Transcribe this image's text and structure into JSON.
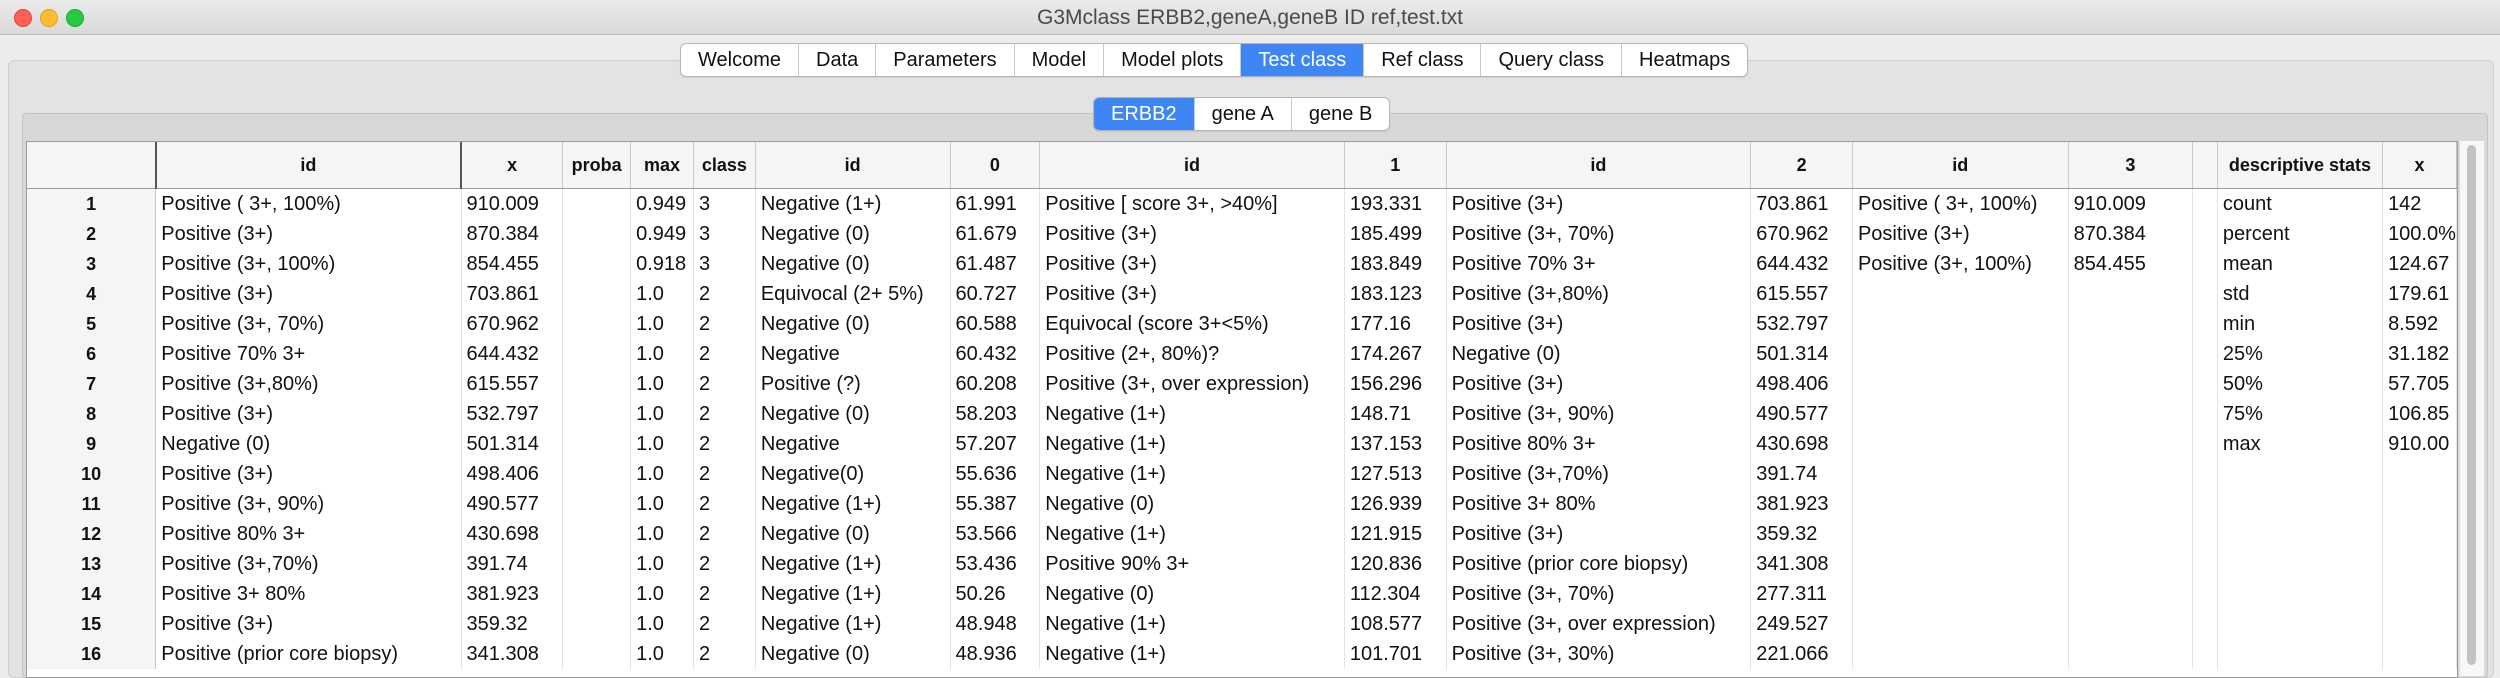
{
  "window": {
    "title": "G3Mclass ERBB2,geneA,geneB ID ref,test.txt"
  },
  "tabs": [
    {
      "label": "Welcome",
      "active": false
    },
    {
      "label": "Data",
      "active": false
    },
    {
      "label": "Parameters",
      "active": false
    },
    {
      "label": "Model",
      "active": false
    },
    {
      "label": "Model plots",
      "active": false
    },
    {
      "label": "Test class",
      "active": true
    },
    {
      "label": "Ref class",
      "active": false
    },
    {
      "label": "Query class",
      "active": false
    },
    {
      "label": "Heatmaps",
      "active": false
    }
  ],
  "subtabs": [
    {
      "label": "ERBB2",
      "active": true
    },
    {
      "label": "gene A",
      "active": false
    },
    {
      "label": "gene B",
      "active": false
    }
  ],
  "table": {
    "columns": [
      "",
      "id",
      "x",
      "proba",
      "max",
      "class",
      "id",
      "0",
      "id",
      "1",
      "id",
      "2",
      "id",
      "3",
      "",
      "descriptive stats",
      "x"
    ],
    "rows": [
      [
        "1",
        "Positive ( 3+, 100%)",
        "910.009",
        "",
        "0.949",
        "3",
        "Negative (1+)",
        "61.991",
        "Positive [ score 3+, >40%]",
        "193.331",
        "Positive (3+)",
        "703.861",
        "Positive ( 3+, 100%)",
        "910.009",
        "",
        "count",
        "142"
      ],
      [
        "2",
        "Positive (3+)",
        "870.384",
        "",
        "0.949",
        "3",
        "Negative (0)",
        "61.679",
        "Positive (3+)",
        "185.499",
        "Positive (3+, 70%)",
        "670.962",
        "Positive (3+)",
        "870.384",
        "",
        "percent",
        "100.0%"
      ],
      [
        "3",
        "Positive (3+, 100%)",
        "854.455",
        "",
        "0.918",
        "3",
        "Negative (0)",
        "61.487",
        "Positive (3+)",
        "183.849",
        "Positive 70% 3+",
        "644.432",
        "Positive (3+, 100%)",
        "854.455",
        "",
        "mean",
        "124.67"
      ],
      [
        "4",
        "Positive (3+)",
        "703.861",
        "",
        "1.0",
        "2",
        "Equivocal (2+ 5%)",
        "60.727",
        "Positive (3+)",
        "183.123",
        "Positive (3+,80%)",
        "615.557",
        "",
        "",
        "",
        "std",
        "179.61"
      ],
      [
        "5",
        "Positive (3+, 70%)",
        "670.962",
        "",
        "1.0",
        "2",
        "Negative (0)",
        "60.588",
        "Equivocal (score 3+<5%)",
        "177.16",
        "Positive (3+)",
        "532.797",
        "",
        "",
        "",
        "min",
        "8.592"
      ],
      [
        "6",
        "Positive 70% 3+",
        "644.432",
        "",
        "1.0",
        "2",
        "Negative",
        "60.432",
        "Positive  (2+, 80%)?",
        "174.267",
        "Negative (0)",
        "501.314",
        "",
        "",
        "",
        "25%",
        "31.182"
      ],
      [
        "7",
        "Positive (3+,80%)",
        "615.557",
        "",
        "1.0",
        "2",
        "Positive (?)",
        "60.208",
        "Positive (3+, over expression)",
        "156.296",
        "Positive (3+)",
        "498.406",
        "",
        "",
        "",
        "50%",
        "57.705"
      ],
      [
        "8",
        "Positive (3+)",
        "532.797",
        "",
        "1.0",
        "2",
        "Negative (0)",
        "58.203",
        "Negative (1+)",
        "148.71",
        "Positive (3+, 90%)",
        "490.577",
        "",
        "",
        "",
        "75%",
        "106.85"
      ],
      [
        "9",
        "Negative (0)",
        "501.314",
        "",
        "1.0",
        "2",
        "Negative",
        "57.207",
        "Negative (1+)",
        "137.153",
        "Positive 80% 3+",
        "430.698",
        "",
        "",
        "",
        "max",
        "910.00"
      ],
      [
        "10",
        "Positive (3+)",
        "498.406",
        "",
        "1.0",
        "2",
        "Negative(0)",
        "55.636",
        "Negative (1+)",
        "127.513",
        "Positive (3+,70%)",
        "391.74",
        "",
        "",
        "",
        "",
        ""
      ],
      [
        "11",
        "Positive (3+, 90%)",
        "490.577",
        "",
        "1.0",
        "2",
        "Negative (1+)",
        "55.387",
        "Negative (0)",
        "126.939",
        "Positive 3+ 80%",
        "381.923",
        "",
        "",
        "",
        "",
        ""
      ],
      [
        "12",
        "Positive 80% 3+",
        "430.698",
        "",
        "1.0",
        "2",
        "Negative (0)",
        "53.566",
        "Negative (1+)",
        "121.915",
        "Positive (3+)",
        "359.32",
        "",
        "",
        "",
        "",
        ""
      ],
      [
        "13",
        "Positive (3+,70%)",
        "391.74",
        "",
        "1.0",
        "2",
        "Negative (1+)",
        "53.436",
        "Positive 90% 3+",
        "120.836",
        "Positive (prior core biopsy)",
        "341.308",
        "",
        "",
        "",
        "",
        ""
      ],
      [
        "14",
        "Positive 3+ 80%",
        "381.923",
        "",
        "1.0",
        "2",
        "Negative (1+)",
        "50.26",
        "Negative (0)",
        "112.304",
        "Positive (3+, 70%)",
        "277.311",
        "",
        "",
        "",
        "",
        ""
      ],
      [
        "15",
        "Positive (3+)",
        "359.32",
        "",
        "1.0",
        "2",
        "Negative (1+)",
        "48.948",
        "Negative (1+)",
        "108.577",
        "Positive (3+, over expression)",
        "249.527",
        "",
        "",
        "",
        "",
        ""
      ],
      [
        "16",
        "Positive (prior core biopsy)",
        "341.308",
        "",
        "1.0",
        "2",
        "Negative (0)",
        "48.936",
        "Negative (1+)",
        "101.701",
        "Positive (3+, 30%)",
        "221.066",
        "",
        "",
        "",
        "",
        ""
      ]
    ]
  }
}
